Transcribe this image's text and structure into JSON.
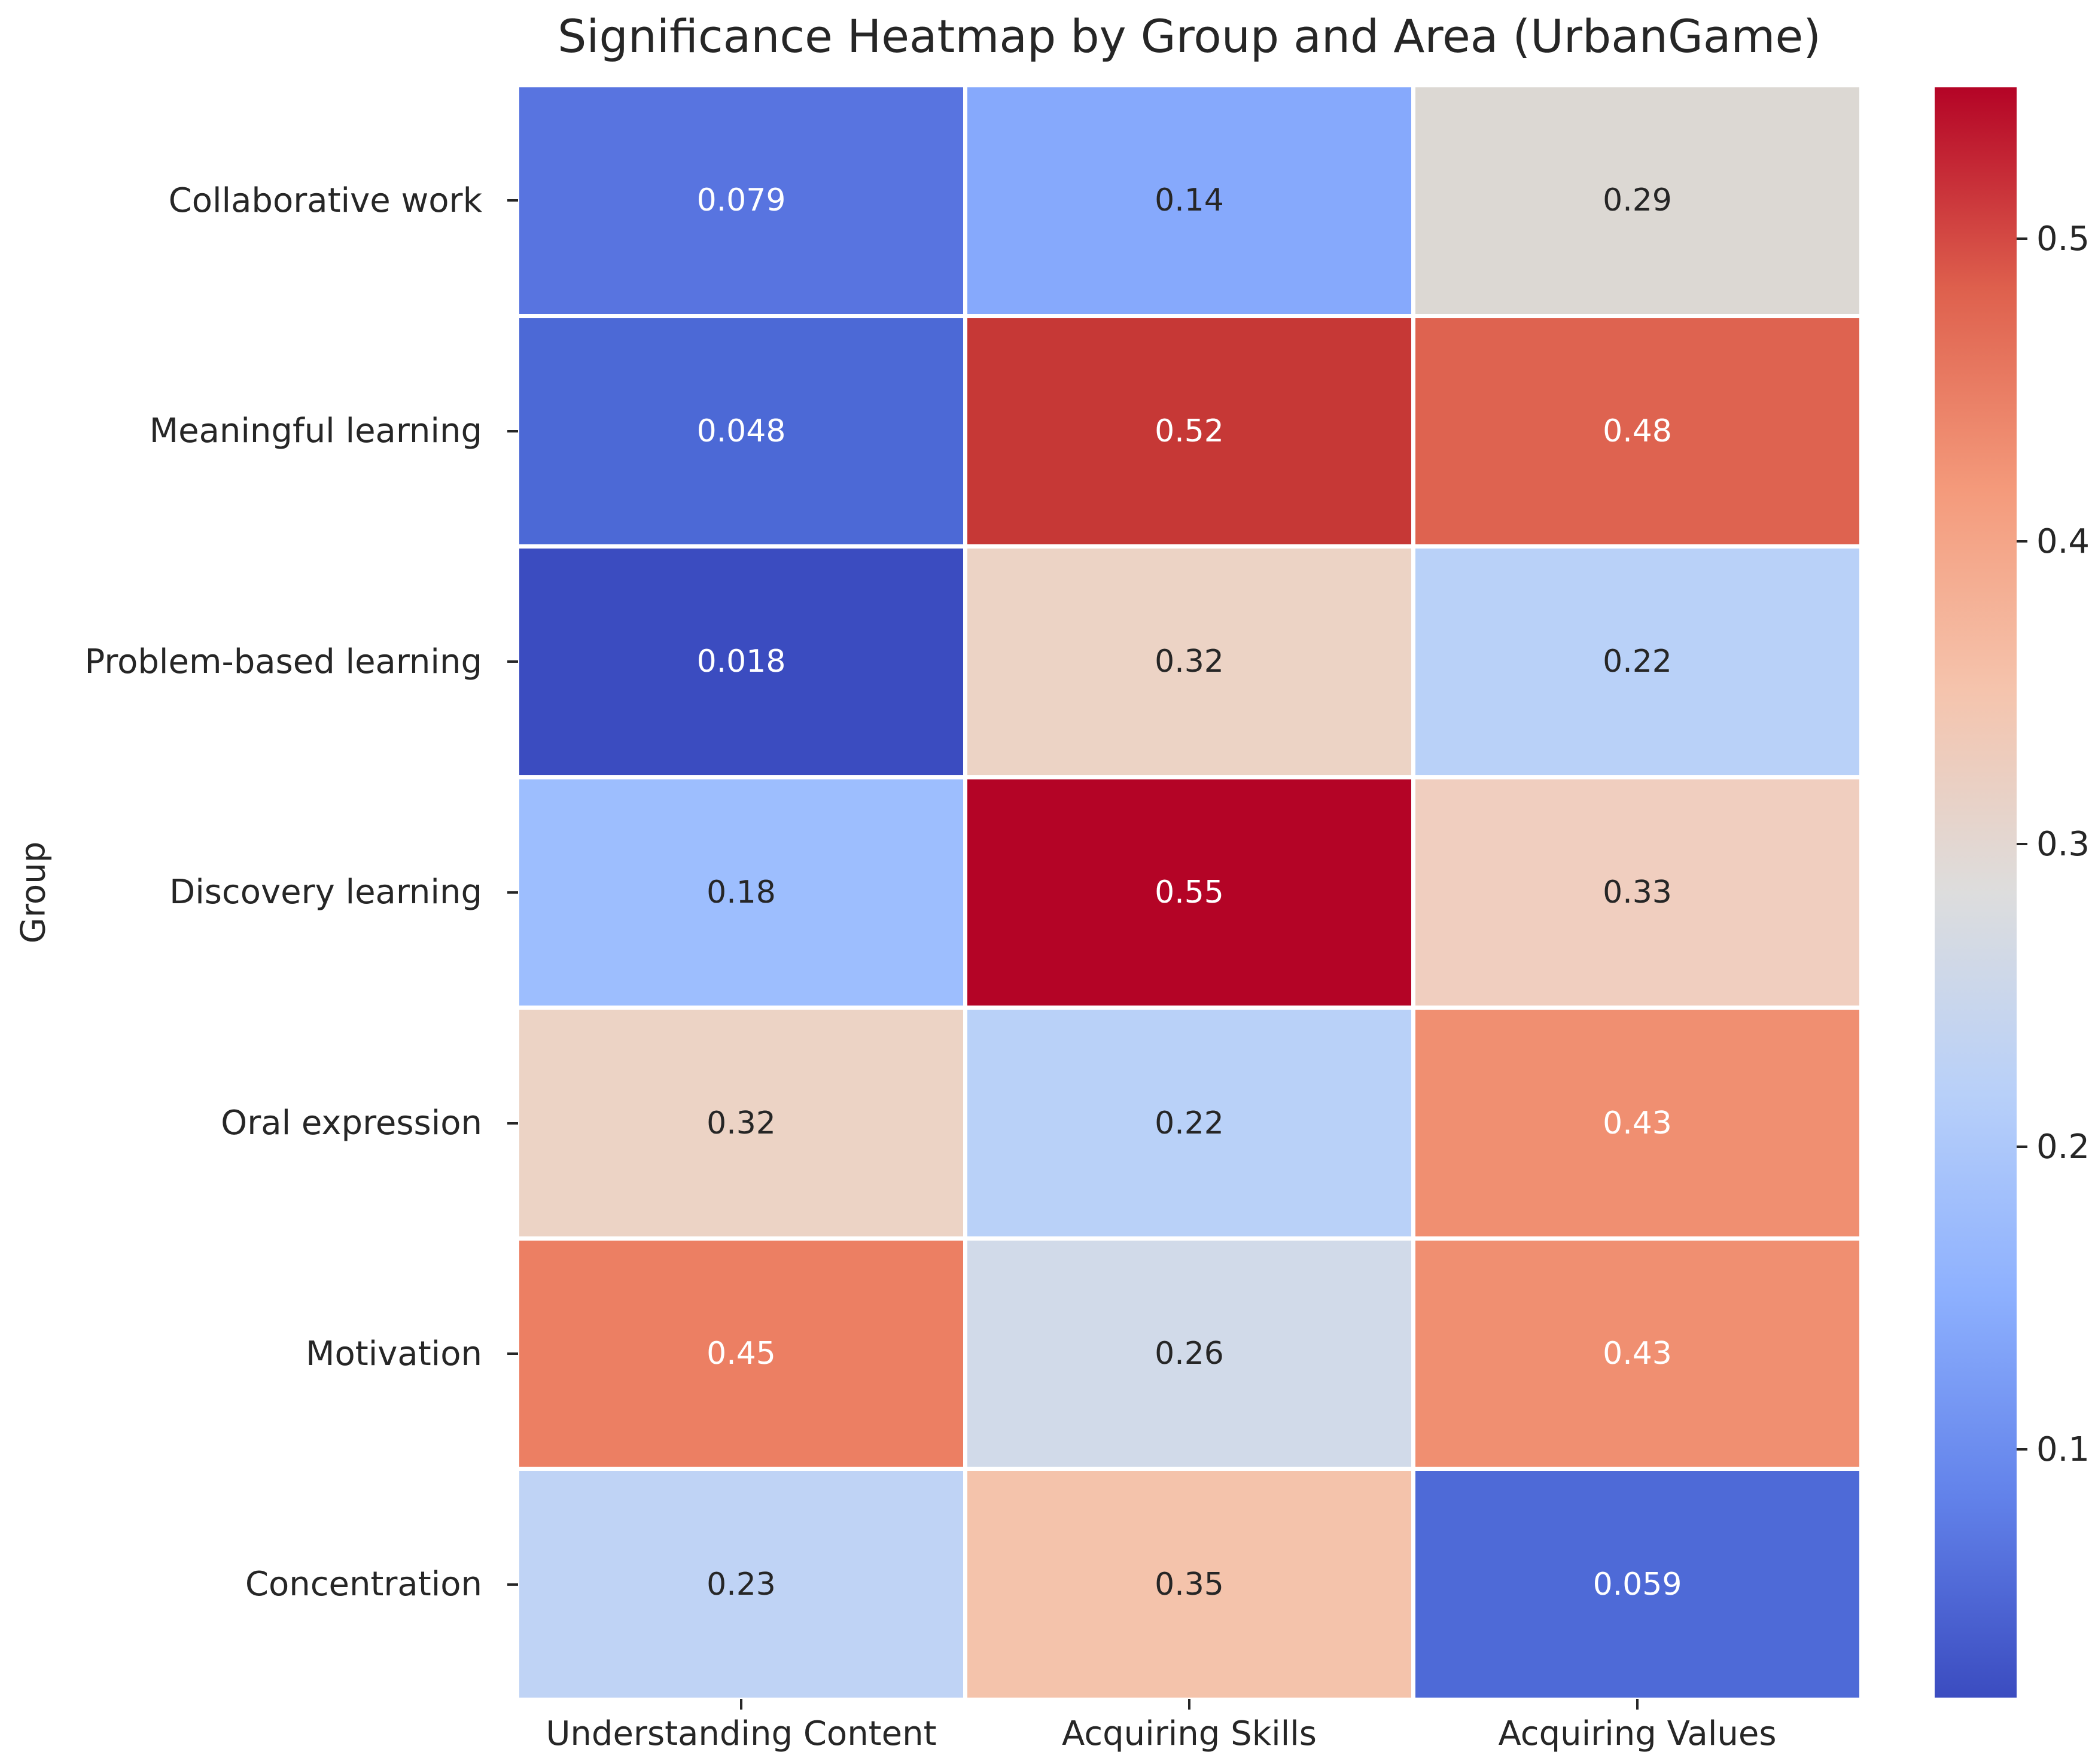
{
  "chart_data": {
    "type": "heatmap",
    "title": "Significance Heatmap by Group and Area (UrbanGame)",
    "ylabel": "Group",
    "xlabel": "",
    "rows": [
      "Collaborative work",
      "Meaningful learning",
      "Problem-based learning",
      "Discovery learning",
      "Oral expression",
      "Motivation",
      "Concentration"
    ],
    "columns": [
      "Understanding Content",
      "Acquiring Skills",
      "Acquiring Values"
    ],
    "values": [
      [
        0.079,
        0.14,
        0.29
      ],
      [
        0.048,
        0.52,
        0.48
      ],
      [
        0.018,
        0.32,
        0.22
      ],
      [
        0.18,
        0.55,
        0.33
      ],
      [
        0.32,
        0.22,
        0.43
      ],
      [
        0.45,
        0.26,
        0.43
      ],
      [
        0.23,
        0.35,
        0.059
      ]
    ],
    "labels": [
      [
        "0.079",
        "0.14",
        "0.29"
      ],
      [
        "0.048",
        "0.52",
        "0.48"
      ],
      [
        "0.018",
        "0.32",
        "0.22"
      ],
      [
        "0.18",
        "0.55",
        "0.33"
      ],
      [
        "0.32",
        "0.22",
        "0.43"
      ],
      [
        "0.45",
        "0.26",
        "0.43"
      ],
      [
        "0.23",
        "0.35",
        "0.059"
      ]
    ],
    "cell_colors": [
      [
        "#5874E0",
        "#86A9FC",
        "#DCD8D3"
      ],
      [
        "#4C69D6",
        "#C63836",
        "#DE6350"
      ],
      [
        "#3B4CC0",
        "#ECD3C5",
        "#B9D1F8"
      ],
      [
        "#9DBEFE",
        "#B40426",
        "#F0CEBF"
      ],
      [
        "#ECD3C5",
        "#B9D1F8",
        "#F08F71"
      ],
      [
        "#EC7F63",
        "#D1DAE9",
        "#F08F71"
      ],
      [
        "#BFD3F5",
        "#F4C3AB",
        "#4E6AD7"
      ]
    ],
    "cell_text_colors": [
      [
        "#ffffff",
        "#262626",
        "#262626"
      ],
      [
        "#ffffff",
        "#ffffff",
        "#ffffff"
      ],
      [
        "#ffffff",
        "#262626",
        "#262626"
      ],
      [
        "#262626",
        "#ffffff",
        "#262626"
      ],
      [
        "#262626",
        "#262626",
        "#ffffff"
      ],
      [
        "#ffffff",
        "#262626",
        "#ffffff"
      ],
      [
        "#262626",
        "#262626",
        "#ffffff"
      ]
    ],
    "grid_line_color": "#ffffff",
    "text_color": "#262626",
    "colorbar": {
      "position": "right",
      "colormap": "coolwarm",
      "vmin": 0.018,
      "vmax": 0.55,
      "tick_labels": [
        "0.5",
        "0.4",
        "0.3",
        "0.2",
        "0.1"
      ],
      "tick_values": [
        0.5,
        0.4,
        0.3,
        0.2,
        0.1
      ],
      "gradient_stops": [
        "#3B4CC0",
        "#6282EA",
        "#8DB0FE",
        "#B8D0F9",
        "#DDDDDD",
        "#F5C4AD",
        "#F49A7B",
        "#DE604D",
        "#B40426"
      ]
    }
  }
}
